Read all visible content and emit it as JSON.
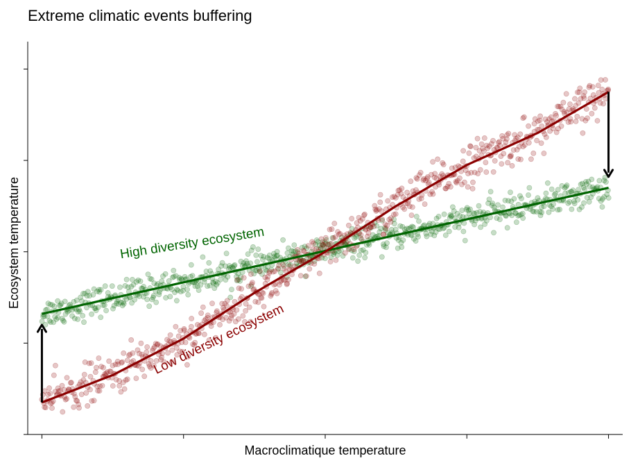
{
  "chart_data": {
    "type": "scatter",
    "title": "Extreme climatic events buffering",
    "xlabel": "Macroclimatique temperature",
    "ylabel": "Ecosystem temperature",
    "xlim": [
      -0.1,
      4.1
    ],
    "ylim": [
      0,
      4.3
    ],
    "x_ticks": [
      0,
      1,
      2,
      3,
      4
    ],
    "y_ticks": [
      0,
      1,
      2,
      3,
      4
    ],
    "tick_labels_shown": false,
    "grid": false,
    "legend": "none",
    "series": [
      {
        "name": "High diversity ecosystem",
        "color": "#006400",
        "fit_line": {
          "x": [
            0,
            4
          ],
          "y": [
            1.32,
            2.7
          ]
        },
        "scatter_noise_sd": 0.08
      },
      {
        "name": "Low diversity ecosystem",
        "color": "#8b0000",
        "fit_line": {
          "x": [
            0,
            0.5,
            1,
            1.5,
            2,
            2.5,
            3,
            3.5,
            4
          ],
          "y": [
            0.35,
            0.65,
            1.05,
            1.55,
            2.0,
            2.5,
            2.95,
            3.3,
            3.75
          ]
        },
        "scatter_noise_sd": 0.11
      }
    ],
    "annotations": [
      {
        "type": "arrow",
        "x": 0,
        "from_y": 0.35,
        "to_y": 1.2
      },
      {
        "type": "arrow",
        "x": 4,
        "from_y": 3.75,
        "to_y": 2.82
      }
    ]
  }
}
